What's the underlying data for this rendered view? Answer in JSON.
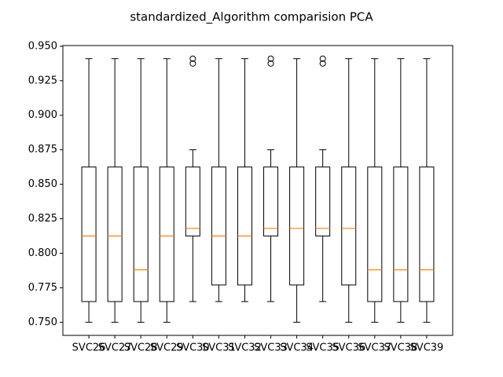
{
  "chart_data": {
    "type": "box",
    "title": "standardized_Algorithm comparision PCA",
    "xlabel": "",
    "ylabel": "",
    "ylim": [
      0.7405,
      0.9505
    ],
    "yticks": [
      0.75,
      0.775,
      0.8,
      0.825,
      0.85,
      0.875,
      0.9,
      0.925,
      0.95
    ],
    "ytick_labels": [
      "0.750",
      "0.775",
      "0.800",
      "0.825",
      "0.850",
      "0.875",
      "0.900",
      "0.925",
      "0.950"
    ],
    "grid": false,
    "legend": "none",
    "colors": {
      "box": "#000000",
      "median": "#ff7f0e",
      "background": "#ffffff"
    },
    "boxes": [
      {
        "label": "SVC26",
        "whislo": 0.75,
        "q1": 0.765,
        "med": 0.8125,
        "q3": 0.8625,
        "whishi": 0.941,
        "fliers": []
      },
      {
        "label": "SVC27",
        "whislo": 0.75,
        "q1": 0.765,
        "med": 0.8125,
        "q3": 0.8625,
        "whishi": 0.941,
        "fliers": []
      },
      {
        "label": "SVC28",
        "whislo": 0.75,
        "q1": 0.765,
        "med": 0.788,
        "q3": 0.8625,
        "whishi": 0.941,
        "fliers": []
      },
      {
        "label": "SVC29",
        "whislo": 0.75,
        "q1": 0.765,
        "med": 0.8125,
        "q3": 0.8625,
        "whishi": 0.941,
        "fliers": []
      },
      {
        "label": "SVC30",
        "whislo": 0.765,
        "q1": 0.8125,
        "med": 0.818,
        "q3": 0.8625,
        "whishi": 0.875,
        "fliers": [
          0.9375,
          0.941
        ]
      },
      {
        "label": "SVC31",
        "whislo": 0.765,
        "q1": 0.777,
        "med": 0.8125,
        "q3": 0.8625,
        "whishi": 0.941,
        "fliers": []
      },
      {
        "label": "SVC32",
        "whislo": 0.765,
        "q1": 0.777,
        "med": 0.8125,
        "q3": 0.8625,
        "whishi": 0.941,
        "fliers": []
      },
      {
        "label": "SVC33",
        "whislo": 0.765,
        "q1": 0.8125,
        "med": 0.818,
        "q3": 0.8625,
        "whishi": 0.875,
        "fliers": [
          0.9375,
          0.941
        ]
      },
      {
        "label": "SVC34",
        "whislo": 0.75,
        "q1": 0.777,
        "med": 0.818,
        "q3": 0.8625,
        "whishi": 0.941,
        "fliers": []
      },
      {
        "label": "SVC35",
        "whislo": 0.765,
        "q1": 0.8125,
        "med": 0.818,
        "q3": 0.8625,
        "whishi": 0.875,
        "fliers": [
          0.9375,
          0.941
        ]
      },
      {
        "label": "SVC36",
        "whislo": 0.75,
        "q1": 0.777,
        "med": 0.818,
        "q3": 0.8625,
        "whishi": 0.941,
        "fliers": []
      },
      {
        "label": "SVC37",
        "whislo": 0.75,
        "q1": 0.765,
        "med": 0.788,
        "q3": 0.8625,
        "whishi": 0.941,
        "fliers": []
      },
      {
        "label": "SVC38",
        "whislo": 0.75,
        "q1": 0.765,
        "med": 0.788,
        "q3": 0.8625,
        "whishi": 0.941,
        "fliers": []
      },
      {
        "label": "SVC39",
        "whislo": 0.75,
        "q1": 0.765,
        "med": 0.788,
        "q3": 0.8625,
        "whishi": 0.941,
        "fliers": []
      }
    ]
  }
}
